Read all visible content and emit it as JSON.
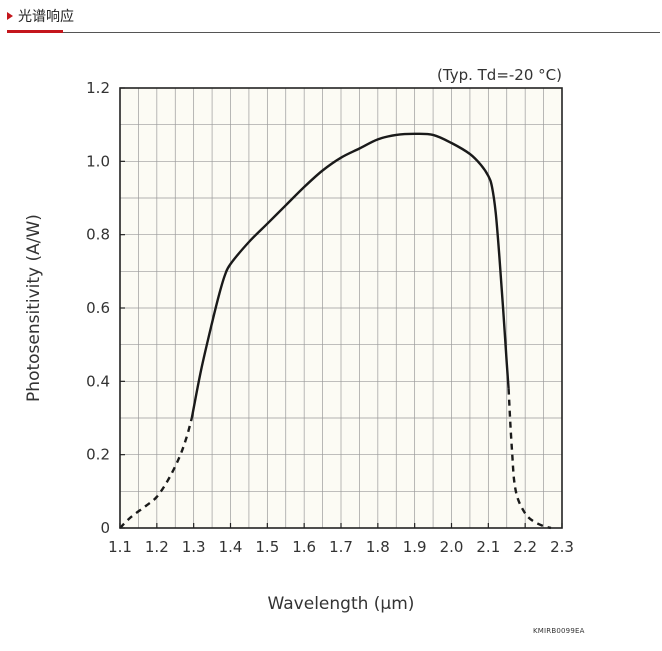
{
  "section": {
    "title": "光谱响应"
  },
  "chart_data": {
    "type": "line",
    "title": "",
    "annotation": "(Typ. Td=-20 °C)",
    "xlabel": "Wavelength (μm)",
    "ylabel": "Photosensitivity (A/W)",
    "xlim": [
      1.1,
      2.3
    ],
    "ylim": [
      0,
      1.2
    ],
    "x_ticks": [
      1.1,
      1.2,
      1.3,
      1.4,
      1.5,
      1.6,
      1.7,
      1.8,
      1.9,
      2.0,
      2.1,
      2.2,
      2.3
    ],
    "x_tick_labels": [
      "1.1",
      "1.2",
      "1.3",
      "1.4",
      "1.5",
      "1.6",
      "1.7",
      "1.8",
      "1.9",
      "2.0",
      "2.1",
      "2.2",
      "2.3"
    ],
    "y_ticks": [
      0,
      0.2,
      0.4,
      0.6,
      0.8,
      1.0,
      1.2
    ],
    "y_tick_labels": [
      "0",
      "0.2",
      "0.4",
      "0.6",
      "0.8",
      "1.0",
      "1.2"
    ],
    "x_minor_step": 0.05,
    "y_minor_step": 0.1,
    "grid": true,
    "series": [
      {
        "style": "solid",
        "x": [
          1.295,
          1.32,
          1.35,
          1.37,
          1.385,
          1.4,
          1.45,
          1.5,
          1.55,
          1.6,
          1.65,
          1.7,
          1.75,
          1.8,
          1.85,
          1.9,
          1.95,
          2.0,
          2.05,
          2.08,
          2.1,
          2.11,
          2.12,
          2.13,
          2.14,
          2.15,
          2.155
        ],
        "y": [
          0.3,
          0.43,
          0.56,
          0.64,
          0.69,
          0.72,
          0.78,
          0.83,
          0.88,
          0.93,
          0.975,
          1.01,
          1.035,
          1.06,
          1.072,
          1.075,
          1.072,
          1.05,
          1.02,
          0.99,
          0.96,
          0.93,
          0.86,
          0.74,
          0.6,
          0.45,
          0.38
        ]
      },
      {
        "style": "dashed",
        "x": [
          1.1,
          1.13,
          1.17,
          1.2,
          1.23,
          1.26,
          1.28,
          1.295
        ],
        "y": [
          0.0,
          0.03,
          0.06,
          0.085,
          0.13,
          0.19,
          0.245,
          0.3
        ]
      },
      {
        "style": "dashed",
        "x": [
          2.155,
          2.16,
          2.165,
          2.17,
          2.18,
          2.2,
          2.22,
          2.25,
          2.27
        ],
        "y": [
          0.38,
          0.28,
          0.2,
          0.13,
          0.08,
          0.04,
          0.02,
          0.005,
          0.0
        ]
      }
    ]
  },
  "figure_code": "KMIRB0099EA"
}
